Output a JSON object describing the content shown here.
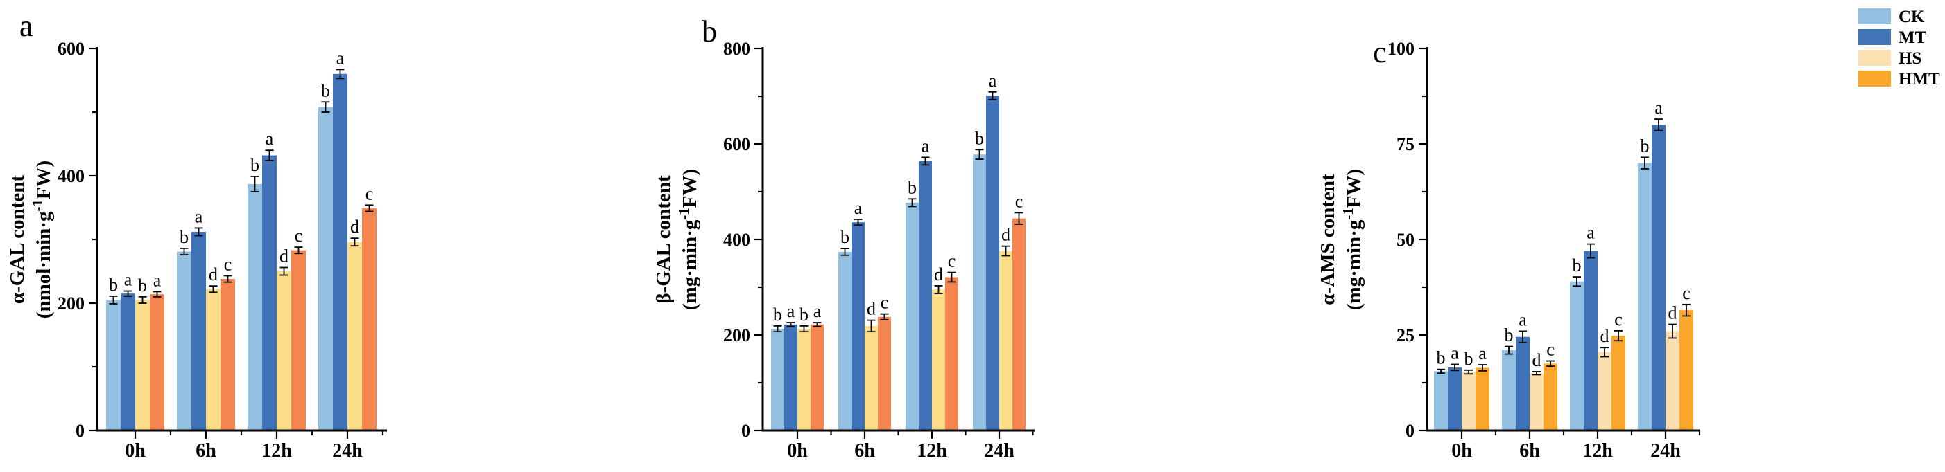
{
  "figure_title": "",
  "legend": {
    "position": "top-right",
    "items": [
      {
        "label": "CK",
        "color": "#93BFE0"
      },
      {
        "label": "MT",
        "color": "#4173B7"
      },
      {
        "label": "HS",
        "color": "#FBE0B1"
      },
      {
        "label": "HMT",
        "color": "#F9A62B"
      }
    ]
  },
  "chart_data": [
    {
      "type": "bar",
      "panel_label": "a",
      "ylabel_lines": [
        "α-GAL content",
        "(nmol·min·g⁻¹FW)"
      ],
      "ylim": [
        0,
        600
      ],
      "ytick_step": 200,
      "yminor_step": 100,
      "grid": false,
      "categories": [
        "0h",
        "6h",
        "12h",
        "24h"
      ],
      "series": [
        {
          "name": "CK",
          "color": "#93BFE0",
          "values": [
            205,
            281,
            387,
            508
          ],
          "errors": [
            6,
            5,
            12,
            8
          ],
          "sig_letters": [
            "b",
            "b",
            "b",
            "b"
          ]
        },
        {
          "name": "MT",
          "color": "#3F72B7",
          "values": [
            215,
            312,
            432,
            560
          ],
          "errors": [
            4,
            6,
            8,
            7
          ],
          "sig_letters": [
            "a",
            "a",
            "a",
            "a"
          ]
        },
        {
          "name": "HS",
          "color": "#FCDD88",
          "values": [
            205,
            222,
            250,
            296
          ],
          "errors": [
            5,
            5,
            6,
            6
          ],
          "sig_letters": [
            "b",
            "d",
            "d",
            "d"
          ]
        },
        {
          "name": "HMT",
          "color": "#F5854E",
          "values": [
            214,
            238,
            283,
            349
          ],
          "errors": [
            4,
            5,
            5,
            5
          ],
          "sig_letters": [
            "a",
            "c",
            "c",
            "c"
          ]
        }
      ]
    },
    {
      "type": "bar",
      "panel_label": "b",
      "ylabel_lines": [
        "β-GAL content",
        "(mg·min·g⁻¹FW)"
      ],
      "ylim": [
        0,
        800
      ],
      "ytick_step": 200,
      "yminor_step": 100,
      "grid": false,
      "categories": [
        "0h",
        "6h",
        "12h",
        "24h"
      ],
      "series": [
        {
          "name": "CK",
          "color": "#93BFE0",
          "values": [
            213,
            374,
            477,
            578
          ],
          "errors": [
            6,
            7,
            8,
            10
          ],
          "sig_letters": [
            "b",
            "b",
            "b",
            "b"
          ]
        },
        {
          "name": "MT",
          "color": "#3F72B7",
          "values": [
            222,
            436,
            564,
            701
          ],
          "errors": [
            4,
            6,
            8,
            8
          ],
          "sig_letters": [
            "a",
            "a",
            "a",
            "a"
          ]
        },
        {
          "name": "HS",
          "color": "#FCDD88",
          "values": [
            213,
            219,
            295,
            376
          ],
          "errors": [
            6,
            12,
            8,
            10
          ],
          "sig_letters": [
            "b",
            "d",
            "d",
            "d"
          ]
        },
        {
          "name": "HMT",
          "color": "#F5854E",
          "values": [
            222,
            238,
            321,
            444
          ],
          "errors": [
            4,
            6,
            10,
            12
          ],
          "sig_letters": [
            "a",
            "c",
            "c",
            "c"
          ]
        }
      ]
    },
    {
      "type": "bar",
      "panel_label": "c",
      "ylabel_lines": [
        "α-AMS content",
        "(mg·min·g⁻¹FW)"
      ],
      "ylim": [
        0,
        100
      ],
      "ytick_step": 25,
      "yminor_step": 12.5,
      "grid": false,
      "categories": [
        "0h",
        "6h",
        "12h",
        "24h"
      ],
      "series": [
        {
          "name": "CK",
          "color": "#93BFE0",
          "values": [
            15.5,
            21,
            39,
            70
          ],
          "errors": [
            0.5,
            1.0,
            1.2,
            1.5
          ],
          "sig_letters": [
            "b",
            "b",
            "b",
            "b"
          ]
        },
        {
          "name": "MT",
          "color": "#3F72B7",
          "values": [
            16.5,
            24.5,
            47,
            80
          ],
          "errors": [
            0.8,
            1.5,
            1.8,
            1.5
          ],
          "sig_letters": [
            "a",
            "a",
            "a",
            "a"
          ]
        },
        {
          "name": "HS",
          "color": "#FBDFAE",
          "values": [
            15.3,
            15.0,
            20.5,
            26
          ],
          "errors": [
            0.5,
            0.4,
            1.2,
            1.8
          ],
          "sig_letters": [
            "b",
            "d",
            "d",
            "d"
          ]
        },
        {
          "name": "HMT",
          "color": "#F9A62B",
          "values": [
            16.4,
            17.5,
            24.8,
            31.5
          ],
          "errors": [
            0.8,
            0.7,
            1.3,
            1.5
          ],
          "sig_letters": [
            "a",
            "c",
            "c",
            "c"
          ]
        }
      ]
    }
  ]
}
